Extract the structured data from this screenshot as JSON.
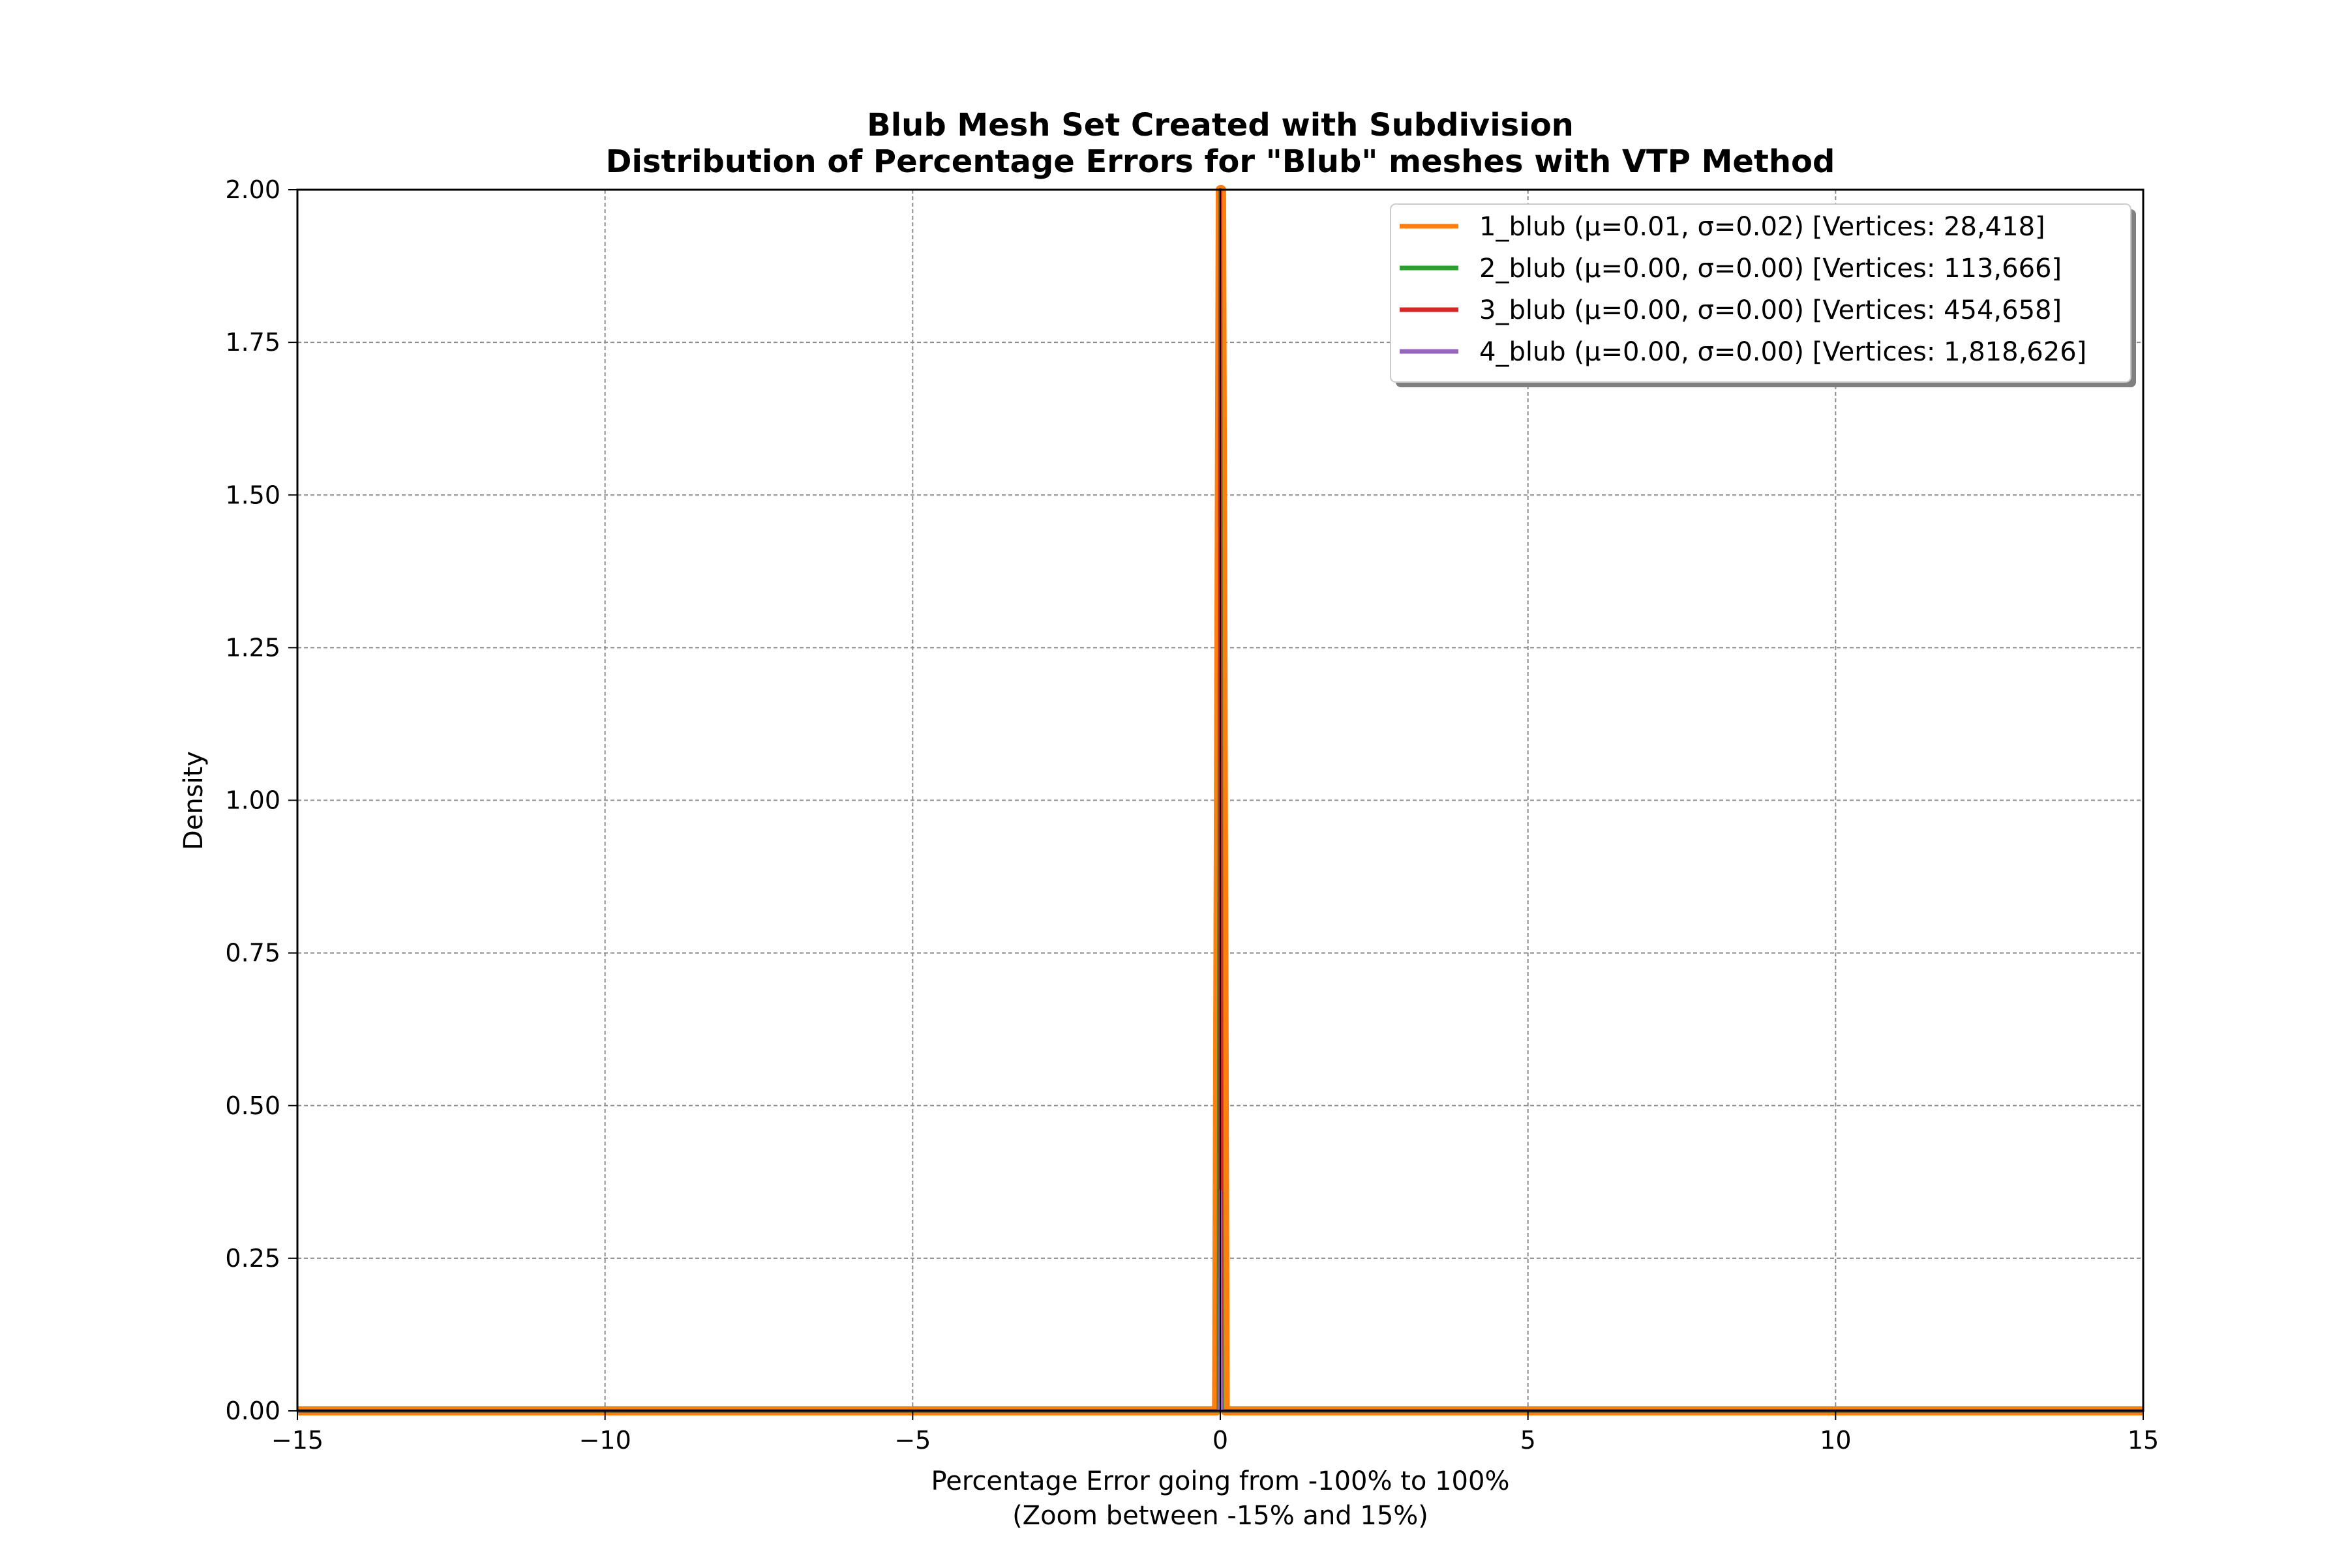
{
  "chart_data": {
    "type": "line",
    "title": "Blub Mesh Set Created with Subdivision",
    "subtitle": "Distribution of Percentage Errors for \"Blub\" meshes with VTP Method",
    "xlabel": "Percentage Error going from -100% to 100%",
    "xlabel_line2": "(Zoom between -15% and 15%)",
    "ylabel": "Density",
    "xlim": [
      -15,
      15
    ],
    "ylim": [
      0,
      2
    ],
    "grid": true,
    "legend_position": "top-right",
    "x_ticks": [
      -15,
      -10,
      -5,
      0,
      5,
      10,
      15
    ],
    "x_tick_labels": [
      "−15",
      "−10",
      "−5",
      "0",
      "5",
      "10",
      "15"
    ],
    "y_ticks": [
      0,
      0.25,
      0.5,
      0.75,
      1.0,
      1.25,
      1.5,
      1.75,
      2.0
    ],
    "y_tick_labels": [
      "0.00",
      "0.25",
      "0.50",
      "0.75",
      "1.00",
      "1.25",
      "1.50",
      "1.75",
      "2.00"
    ],
    "series": [
      {
        "name": "1_blub (μ=0.01, σ=0.02) [Vertices: 28,418]",
        "color": "#ff7f0e",
        "x": [
          -15,
          -0.06,
          0.0,
          0.01,
          0.02,
          0.08,
          15
        ],
        "y": [
          0,
          0,
          2.0,
          2.0,
          2.0,
          0,
          0
        ]
      },
      {
        "name": "2_blub (μ=0.00, σ=0.00) [Vertices: 113,666]",
        "color": "#2ca02c",
        "x": [
          -15,
          -0.03,
          0.0,
          0.03,
          15
        ],
        "y": [
          0,
          0,
          2.0,
          0,
          0
        ]
      },
      {
        "name": "3_blub (μ=0.00, σ=0.00) [Vertices: 454,658]",
        "color": "#d62728",
        "x": [
          -15,
          -0.02,
          0.0,
          0.02,
          15
        ],
        "y": [
          0,
          0,
          2.0,
          0,
          0
        ]
      },
      {
        "name": "4_blub (μ=0.00, σ=0.00) [Vertices: 1,818,626]",
        "color": "#9467bd",
        "x": [
          -15,
          -0.02,
          0.0,
          0.02,
          15
        ],
        "y": [
          0,
          0,
          0.36,
          0,
          0
        ]
      }
    ]
  }
}
